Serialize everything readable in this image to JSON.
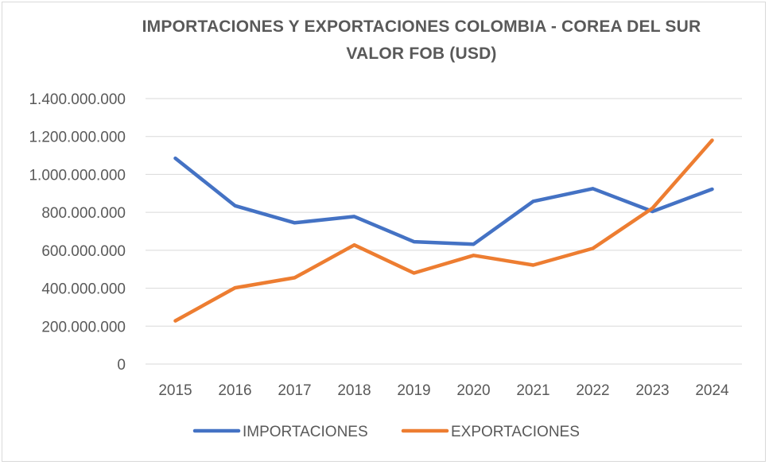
{
  "chart_data": {
    "type": "line",
    "title": "IMPORTACIONES Y EXPORTACIONES COLOMBIA - COREA DEL SUR",
    "subtitle": "VALOR FOB (USD)",
    "xlabel": "",
    "ylabel": "",
    "categories": [
      "2015",
      "2016",
      "2017",
      "2018",
      "2019",
      "2020",
      "2021",
      "2022",
      "2023",
      "2024"
    ],
    "ylim": [
      0,
      1400000000
    ],
    "yticks": [
      0,
      200000000,
      400000000,
      600000000,
      800000000,
      1000000000,
      1200000000,
      1400000000
    ],
    "ytick_labels": [
      "0",
      "200.000.000",
      "400.000.000",
      "600.000.000",
      "800.000.000",
      "1.000.000.000",
      "1.200.000.000",
      "1.400.000.000"
    ],
    "grid": true,
    "legend_position": "bottom",
    "series": [
      {
        "name": "IMPORTACIONES",
        "color": "#4472c4",
        "values": [
          1085000000,
          835000000,
          745000000,
          778000000,
          645000000,
          632000000,
          858000000,
          925000000,
          805000000,
          922000000
        ]
      },
      {
        "name": "EXPORTACIONES",
        "color": "#ed7d31",
        "values": [
          228000000,
          402000000,
          455000000,
          628000000,
          480000000,
          573000000,
          522000000,
          610000000,
          822000000,
          1180000000
        ]
      }
    ]
  }
}
